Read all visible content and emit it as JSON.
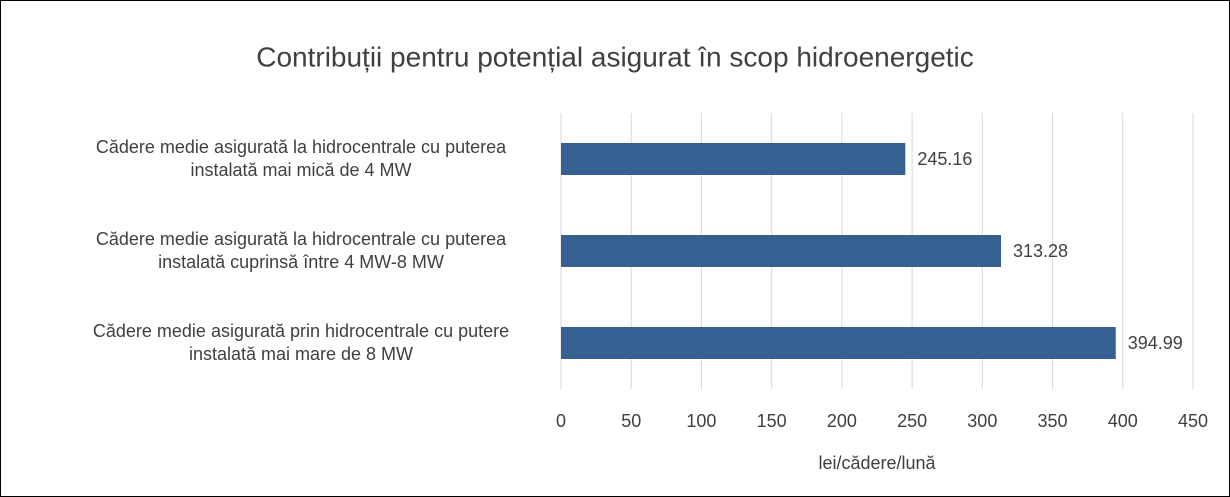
{
  "chart_data": {
    "type": "barh",
    "title": "Contribuții pentru potențial asigurat în scop hidroenergetic",
    "categories": [
      "Cădere medie asigurată la hidrocentrale cu puterea instalată mai mică de 4 MW",
      "Cădere medie asigurată la hidrocentrale cu puterea instalată cuprinsă între 4 MW-8 MW",
      "Cădere medie asigurată prin hidrocentrale cu putere instalată mai mare de 8 MW"
    ],
    "values": [
      245.16,
      313.28,
      394.99
    ],
    "color": "#376092",
    "xlim": [
      0,
      450
    ],
    "xticks": [
      0,
      50,
      100,
      150,
      200,
      250,
      300,
      350,
      400,
      450
    ],
    "xlabel": "lei/cădere/lună",
    "grid": true
  }
}
